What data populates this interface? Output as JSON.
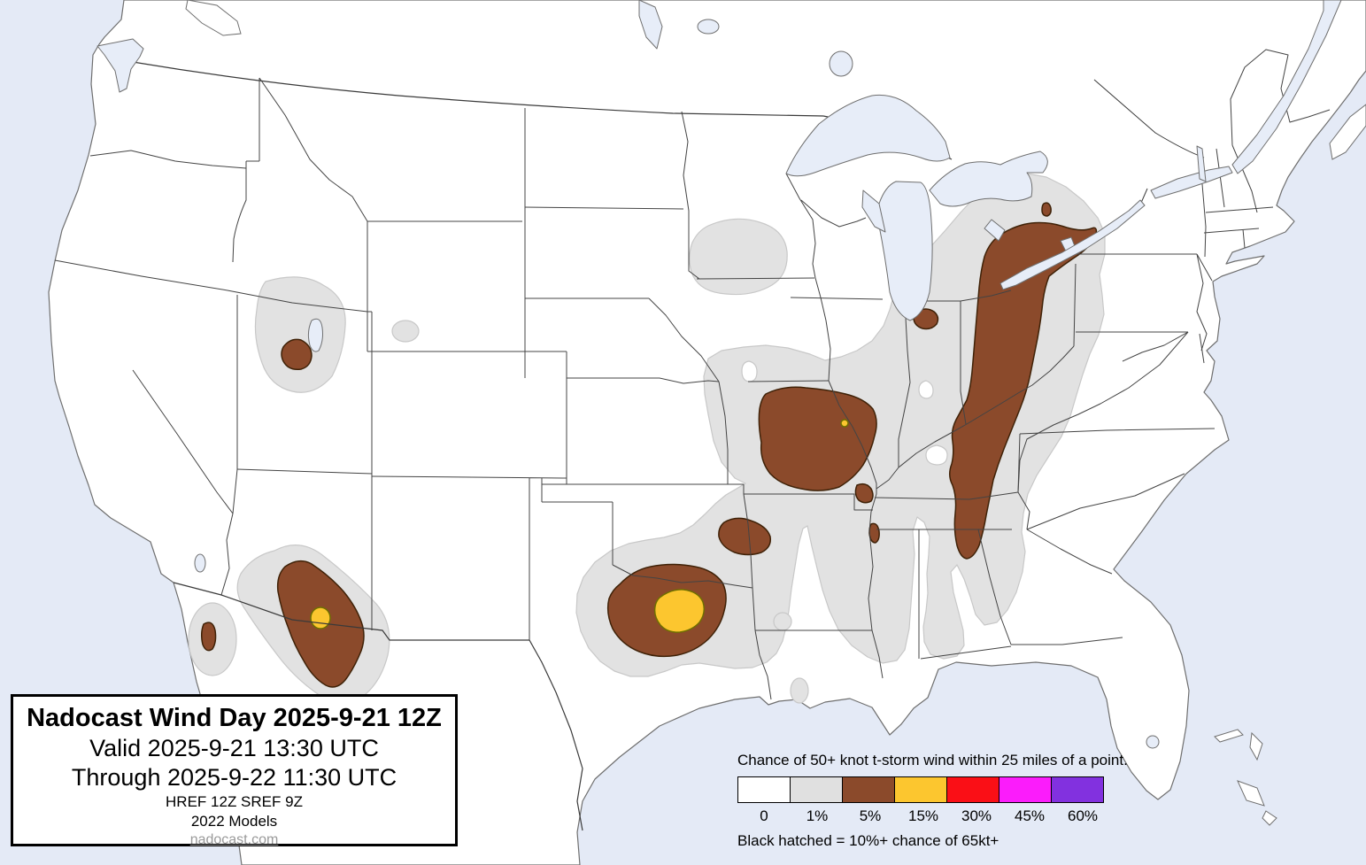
{
  "title_box": {
    "title": "Nadocast Wind Day 2025-9-21 12Z",
    "valid_line": "Valid 2025-9-21 13:30 UTC",
    "through_line": "Through 2025-9-22 11:30 UTC",
    "models_line": "HREF 12Z SREF 9Z",
    "models_year_line": "2022 Models",
    "site_link": "nadocast.com"
  },
  "legend": {
    "heading": "Chance of 50+ knot t-storm wind within 25 miles of a point.",
    "footnote": "Black hatched = 10%+ chance of 65kt+",
    "categories": [
      {
        "label": "0",
        "color": "#FFFFFF"
      },
      {
        "label": "1%",
        "color": "#E0E0E0"
      },
      {
        "label": "5%",
        "color": "#8B4A2B"
      },
      {
        "label": "15%",
        "color": "#FCC62F"
      },
      {
        "label": "30%",
        "color": "#FA0F16"
      },
      {
        "label": "45%",
        "color": "#FB1CFB"
      },
      {
        "label": "60%",
        "color": "#8231DF"
      }
    ]
  },
  "map": {
    "colors": {
      "ocean": "#E4EAF6",
      "land": "#FFFFFF",
      "lake": "#E7EDF8",
      "coast_stroke": "#6F6F6F",
      "state_stroke": "#444444",
      "risk_1": "#E2E2E2",
      "risk_1_stroke": "#C8C8C8",
      "risk_5": "#8B4A2B",
      "risk_5_stroke": "#3F2208",
      "risk_15": "#FCC62F",
      "risk_15_stroke": "#6F6F00"
    },
    "risk_areas": [
      {
        "level": "5%",
        "location": "central Utah"
      },
      {
        "level": "15%",
        "location": "southeast Arizona core"
      },
      {
        "level": "5%",
        "location": "southeast Arizona"
      },
      {
        "level": "5%",
        "location": "northern Baja California"
      },
      {
        "level": "15%",
        "location": "southwest Oklahoma / north Texas core"
      },
      {
        "level": "5%",
        "location": "southwest Oklahoma / north Texas"
      },
      {
        "level": "5%",
        "location": "northeast Texas"
      },
      {
        "level": "15%",
        "location": "east Iowa dot"
      },
      {
        "level": "5%",
        "location": "Iowa / north Missouri / west Illinois"
      },
      {
        "level": "5%",
        "location": "southeast Missouri bootheel"
      },
      {
        "level": "5%",
        "location": "east Arkansas / Mississippi border"
      },
      {
        "level": "5%",
        "location": "northwest Indiana"
      },
      {
        "level": "5%",
        "location": "Michigan thumb"
      },
      {
        "level": "5%",
        "location": "Lake Erie / Ohio / Kentucky / Tennessee / north Georgia"
      },
      {
        "level": "1%",
        "location": "broad surrounding areas: Utah, Arizona, Baja, southern Plains, mid-Mississippi valley to Gulf states, Great Lakes to Georgia, southeast Minnesota / west Wisconsin, southeast Wyoming spot, east Texas spot, Louisiana spot"
      }
    ]
  }
}
